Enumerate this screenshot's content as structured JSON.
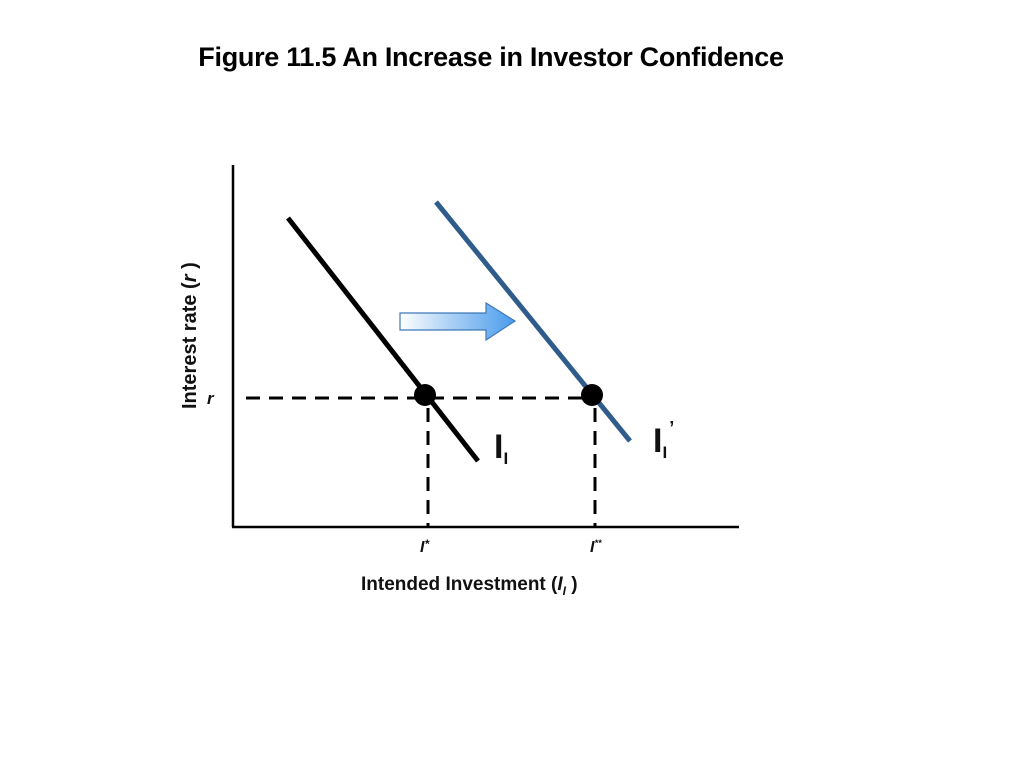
{
  "figure": {
    "title": "Figure 11.5 An Increase in Investor Confidence"
  },
  "axes": {
    "y_label_main": "Interest rate (",
    "y_label_var": "r",
    "y_label_close": " )",
    "x_label_main": "Intended Investment (",
    "x_label_var": "I",
    "x_label_sub": "I",
    "x_label_close": " )"
  },
  "markers": {
    "rate": "r",
    "i_star_base": "I",
    "i_star_sup": "*",
    "i_dstar_base": "I",
    "i_dstar_sup": "**"
  },
  "curves": {
    "original": {
      "label_base": "I",
      "label_sub": "I",
      "color": "#000000"
    },
    "shifted": {
      "label_base": "I",
      "label_sub": "I",
      "label_prime": "’",
      "color": "#2f5c8a"
    }
  },
  "shift_arrow": {
    "direction": "right",
    "color": "#5aa6ee"
  },
  "colors": {
    "axis": "#000000",
    "point": "#000000"
  }
}
